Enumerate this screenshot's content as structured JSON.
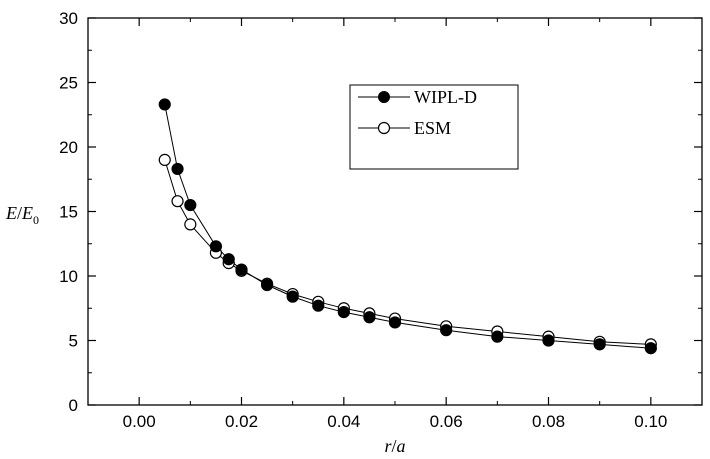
{
  "chart_data": {
    "type": "line",
    "xlabel": {
      "main": "r",
      "sep": "/",
      "sub": "a"
    },
    "ylabel": {
      "main": "E",
      "sep": "/",
      "denom": "E",
      "subscript": "0"
    },
    "xlim": [
      -0.01,
      0.11
    ],
    "ylim": [
      0,
      30
    ],
    "xticks": [
      0.0,
      0.02,
      0.04,
      0.06,
      0.08,
      0.1
    ],
    "xtick_labels": [
      "0.00",
      "0.02",
      "0.04",
      "0.06",
      "0.08",
      "0.10"
    ],
    "yticks": [
      0,
      5,
      10,
      15,
      20,
      25,
      30
    ],
    "ytick_labels": [
      "0",
      "5",
      "10",
      "15",
      "20",
      "25",
      "30"
    ],
    "grid": false,
    "legend_position": "center",
    "series": [
      {
        "name": "WIPL-D",
        "marker": "filled-circle",
        "color": "#000000",
        "x": [
          0.005,
          0.0075,
          0.01,
          0.015,
          0.0175,
          0.02,
          0.025,
          0.03,
          0.035,
          0.04,
          0.045,
          0.05,
          0.06,
          0.07,
          0.08,
          0.09,
          0.1
        ],
        "y": [
          23.3,
          18.3,
          15.5,
          12.3,
          11.3,
          10.5,
          9.3,
          8.4,
          7.7,
          7.2,
          6.8,
          6.4,
          5.8,
          5.3,
          5.0,
          4.7,
          4.4
        ]
      },
      {
        "name": "ESM",
        "marker": "open-circle",
        "color": "#000000",
        "x": [
          0.005,
          0.0075,
          0.01,
          0.015,
          0.0175,
          0.02,
          0.025,
          0.03,
          0.035,
          0.04,
          0.045,
          0.05,
          0.06,
          0.07,
          0.08,
          0.09,
          0.1
        ],
        "y": [
          19.0,
          15.8,
          14.0,
          11.8,
          11.0,
          10.4,
          9.4,
          8.6,
          8.0,
          7.5,
          7.1,
          6.7,
          6.1,
          5.7,
          5.3,
          4.9,
          4.7
        ]
      }
    ]
  }
}
